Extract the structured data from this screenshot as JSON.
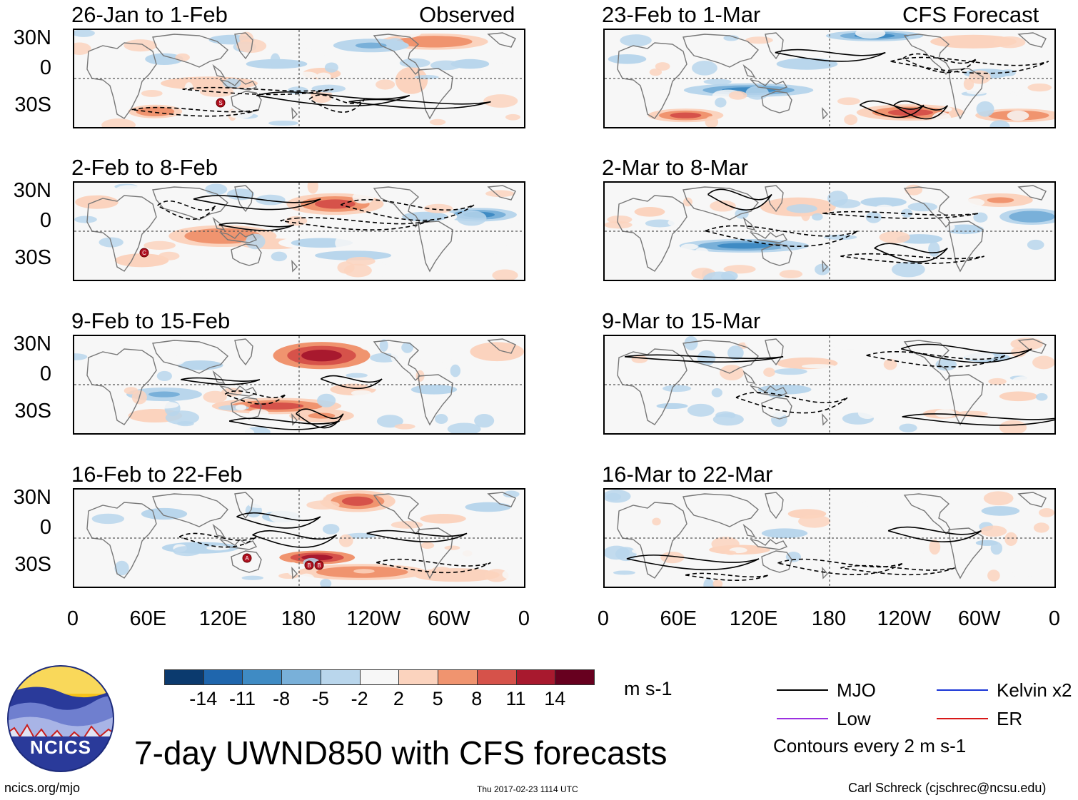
{
  "header": {
    "observed_label": "Observed",
    "forecast_label": "CFS Forecast"
  },
  "chart_data": {
    "type": "heatmap",
    "title": "7-day UWND850 with CFS forecasts",
    "variable": "850-hPa zonal wind anomaly",
    "units": "m s-1",
    "contour_note": "Contours every 2 m s-1",
    "x_ticks": [
      "0",
      "60E",
      "120E",
      "180",
      "120W",
      "60W",
      "0"
    ],
    "y_ticks": [
      "30N",
      "0",
      "30S"
    ],
    "panels": [
      {
        "id": "obs1",
        "period": "26-Jan to 1-Feb",
        "source": "Observed",
        "storm_markers": [
          "S"
        ]
      },
      {
        "id": "obs2",
        "period": "2-Feb to 8-Feb",
        "source": "Observed",
        "storm_markers": [
          "C"
        ]
      },
      {
        "id": "obs3",
        "period": "9-Feb to 15-Feb",
        "source": "Observed",
        "storm_markers": []
      },
      {
        "id": "obs4",
        "period": "16-Feb to 22-Feb",
        "source": "Observed",
        "storm_markers": [
          "A",
          "B",
          "B"
        ]
      },
      {
        "id": "fc1",
        "period": "23-Feb to 1-Mar",
        "source": "CFS Forecast",
        "storm_markers": []
      },
      {
        "id": "fc2",
        "period": "2-Mar to 8-Mar",
        "source": "CFS Forecast",
        "storm_markers": []
      },
      {
        "id": "fc3",
        "period": "9-Mar to 15-Mar",
        "source": "CFS Forecast",
        "storm_markers": []
      },
      {
        "id": "fc4",
        "period": "16-Mar to 22-Mar",
        "source": "CFS Forecast",
        "storm_markers": []
      }
    ],
    "colorbar": {
      "levels": [
        "-14",
        "-11",
        "-8",
        "-5",
        "-2",
        "2",
        "5",
        "8",
        "11",
        "14"
      ],
      "colors": [
        "#0b3a6e",
        "#1f66ad",
        "#3f8bc4",
        "#79b0d9",
        "#b9d6ec",
        "#f7f7f7",
        "#fbd3be",
        "#f0946f",
        "#d6524a",
        "#a8192e",
        "#67001f"
      ],
      "units": "m s-1"
    },
    "legend": [
      {
        "name": "MJO",
        "color": "#000000"
      },
      {
        "name": "Kelvin x2",
        "color": "#1a35d6"
      },
      {
        "name": "Low",
        "color": "#9b30e0"
      },
      {
        "name": "ER",
        "color": "#d81818"
      }
    ]
  },
  "logo": {
    "text": "NCICS"
  },
  "footer": {
    "url": "ncics.org/mjo",
    "timestamp": "Thu 2017-02-23 1114 UTC",
    "credit": "Carl Schreck (cjschrec@ncsu.edu)"
  }
}
